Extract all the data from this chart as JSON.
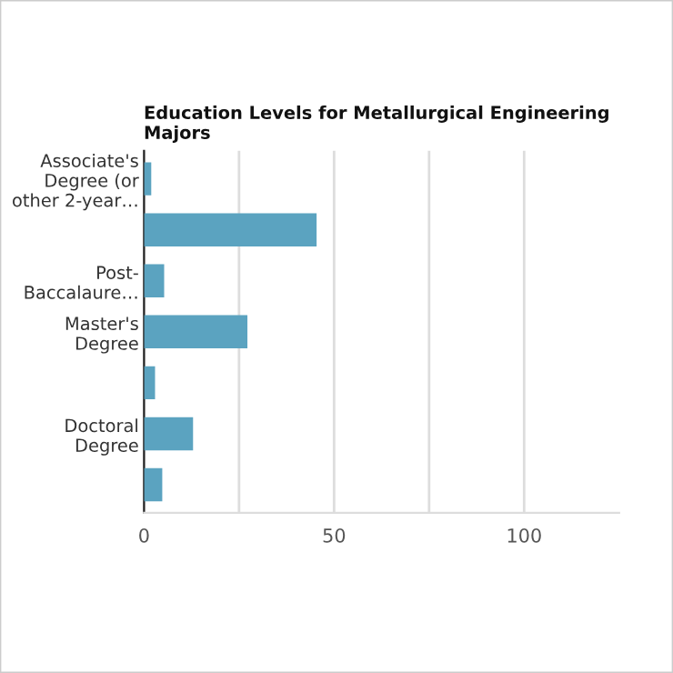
{
  "chart_data": {
    "type": "bar",
    "orientation": "horizontal",
    "title": "Education Levels for Metallurgical Engineering Majors",
    "categories": [
      "Associate's Degree (or other 2-year…",
      null,
      "Post-Baccalaure…",
      "Master's Degree",
      null,
      "Doctoral Degree",
      null
    ],
    "values": [
      1.9,
      45.4,
      5.3,
      27.2,
      2.9,
      12.9,
      4.8
    ],
    "color": "#5ba3c0",
    "xlim": [
      0,
      125
    ],
    "xticks": [
      0,
      {
        "value": 25,
        "label": null
      },
      50,
      {
        "value": 75,
        "label": null
      },
      100
    ],
    "grid": "x"
  }
}
